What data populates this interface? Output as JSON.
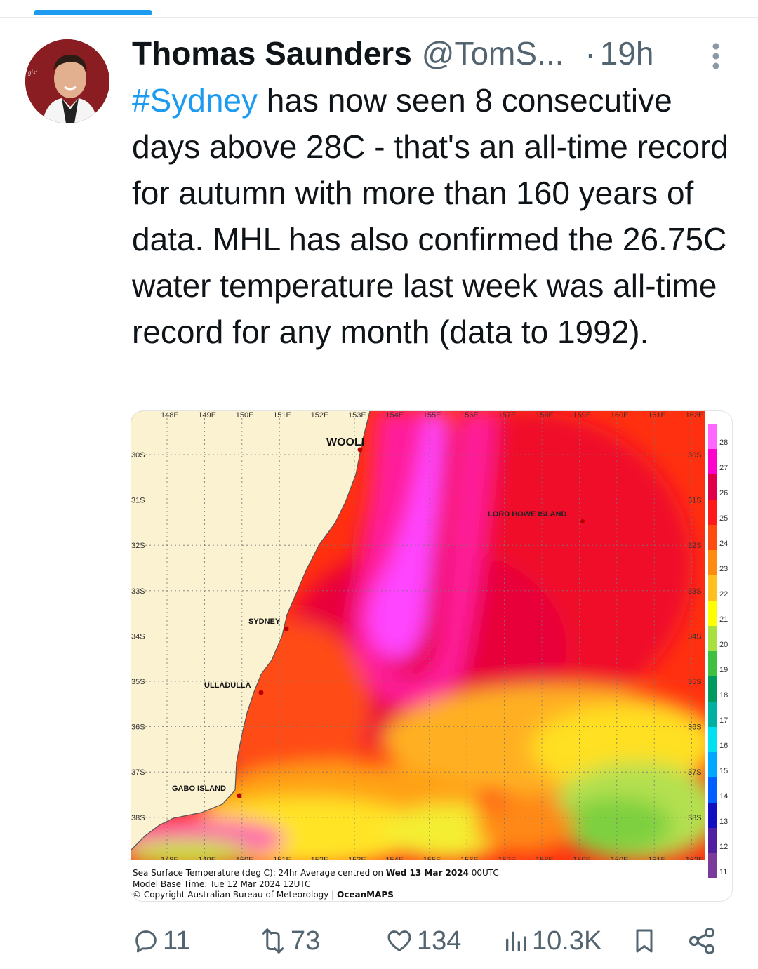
{
  "author": {
    "name": "Thomas Saunders",
    "handle": "@TomS...",
    "separator": "·",
    "time": "19h",
    "avatar_badge": "gist"
  },
  "tweet": {
    "hashtag": "#Sydney",
    "body": " has now seen 8 consecutive days above 28C - that's an all-time record for autumn with more than 160 years of data. MHL has also confirmed the 26.75C water temperature last week was all-time record for any month (data to 1992)."
  },
  "map": {
    "lon_labels": [
      "148E",
      "149E",
      "150E",
      "151E",
      "152E",
      "153E",
      "154E",
      "155E",
      "156E",
      "157E",
      "158E",
      "159E",
      "160E",
      "161E",
      "162E"
    ],
    "lat_labels": [
      "30S",
      "31S",
      "32S",
      "33S",
      "34S",
      "35S",
      "36S",
      "37S",
      "38S"
    ],
    "places": [
      "WOOLI",
      "LORD HOWE ISLAND",
      "SYDNEY",
      "ULLADULLA",
      "GABO ISLAND"
    ],
    "caption_line1_prefix": "Sea Surface Temperature (deg C): 24hr Average centred on ",
    "caption_line1_bold": "Wed 13 Mar 2024",
    "caption_line1_suffix": " 00UTC",
    "caption_line2": "Model Base Time: Tue 12 Mar 2024 12UTC",
    "caption_line3": "Copyright Australian Bureau of Meteorology | ",
    "caption_line3_bold": "OceanMAPS",
    "scale_labels": [
      "28",
      "27",
      "26",
      "25",
      "24",
      "23",
      "22",
      "21",
      "20",
      "19",
      "18",
      "17",
      "16",
      "15",
      "14",
      "13",
      "12",
      "11"
    ],
    "scale_colors": [
      "#ff66ff",
      "#ff00cc",
      "#e0004a",
      "#ff1a1a",
      "#ff4a10",
      "#ff8a10",
      "#ffc020",
      "#ffff00",
      "#a8e040",
      "#40c040",
      "#009a60",
      "#00b0a0",
      "#00e0f0",
      "#00a8ff",
      "#0060ff",
      "#1010c0",
      "#5020a0",
      "#7a3a9a"
    ]
  },
  "actions": {
    "replies": "11",
    "reposts": "73",
    "likes": "134",
    "views": "10.3K"
  },
  "colors": {
    "link": "#1d9bf0",
    "muted": "#536471"
  }
}
